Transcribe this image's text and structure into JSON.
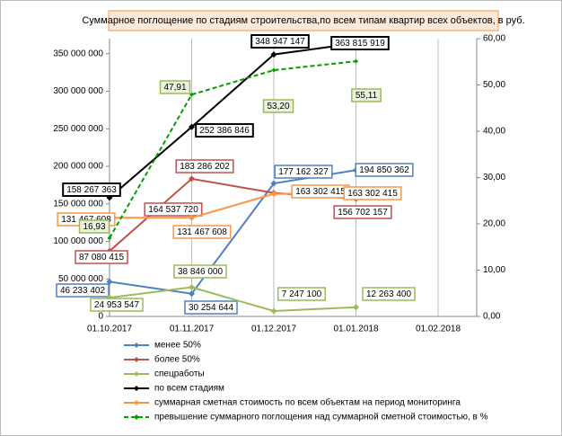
{
  "chart_data": {
    "type": "line",
    "title": "Суммарное поглощение по  стадиям строительства,по всем типам квартир всех объектов, в руб.",
    "categories": [
      "01.10.2017",
      "01.11.2017",
      "01.12.2017",
      "01.01.2018",
      "01.02.2018"
    ],
    "ylim": [
      0,
      370000000
    ],
    "yticks": [
      0,
      {
        "value": 50000000,
        "label": "50 000 000"
      },
      {
        "value": 100000000,
        "label": "100 000 000"
      },
      {
        "value": 150000000,
        "label": "150 000 000"
      },
      {
        "value": 200000000,
        "label": "200 000 000"
      },
      {
        "value": 250000000,
        "label": "250 000 000"
      },
      {
        "value": 300000000,
        "label": "300 000 000"
      },
      {
        "value": 350000000,
        "label": "350 000 000"
      }
    ],
    "y2lim": [
      0,
      60
    ],
    "y2ticks": [
      {
        "value": 0,
        "label": "0,00"
      },
      {
        "value": 10,
        "label": "10,00"
      },
      {
        "value": 20,
        "label": "20,00"
      },
      {
        "value": 30,
        "label": "30,00"
      },
      {
        "value": 40,
        "label": "40,00"
      },
      {
        "value": 50,
        "label": "50,00"
      },
      {
        "value": 60,
        "label": "60,00"
      }
    ],
    "grid": "x",
    "series": [
      {
        "name": "менее 50%",
        "color": "#4f81bd",
        "values": [
          46233402,
          30254644,
          177162327,
          194850362,
          null
        ],
        "value_labels": [
          "46 233 402",
          "30 254 644",
          "177 162 327",
          "194 850 362",
          null
        ]
      },
      {
        "name": "более 50%",
        "color": "#c0504d",
        "values": [
          87080415,
          183286202,
          164537720,
          156702157,
          null
        ],
        "value_labels": [
          "87 080 415",
          "183 286 202",
          "164 537 720",
          "156 702 157",
          null
        ]
      },
      {
        "name": "спецработы",
        "color": "#9bbb59",
        "values": [
          24953547,
          38846000,
          7247100,
          12263400,
          null
        ],
        "value_labels": [
          "24 953 547",
          "38 846 000",
          "7 247 100",
          "12 263 400",
          null
        ]
      },
      {
        "name": "по всем стадиям",
        "color": "#000000",
        "values": [
          158267363,
          252386846,
          348947147,
          363815919,
          null
        ],
        "value_labels": [
          "158 267 363",
          "252 386 846",
          "348 947 147",
          "363 815 919",
          null
        ]
      },
      {
        "name": "суммарная сметная стоимость по всем объектам на период мониторинга",
        "color": "#f79646",
        "values": [
          131467608,
          131467608,
          163302415,
          163302415,
          null
        ],
        "value_labels": [
          "131 467 608",
          "131 467 608",
          "163 302 415",
          "163 302 415",
          null
        ]
      },
      {
        "name": "превышение суммарного поглощения над суммарной сметной стоимостью, в %",
        "color": "#00a000",
        "axis": "y2",
        "dashed": true,
        "values": [
          16.93,
          47.91,
          53.2,
          55.11,
          null
        ],
        "value_labels": [
          "16,93",
          "47,91",
          "53,20",
          "55,11",
          null
        ]
      }
    ]
  }
}
